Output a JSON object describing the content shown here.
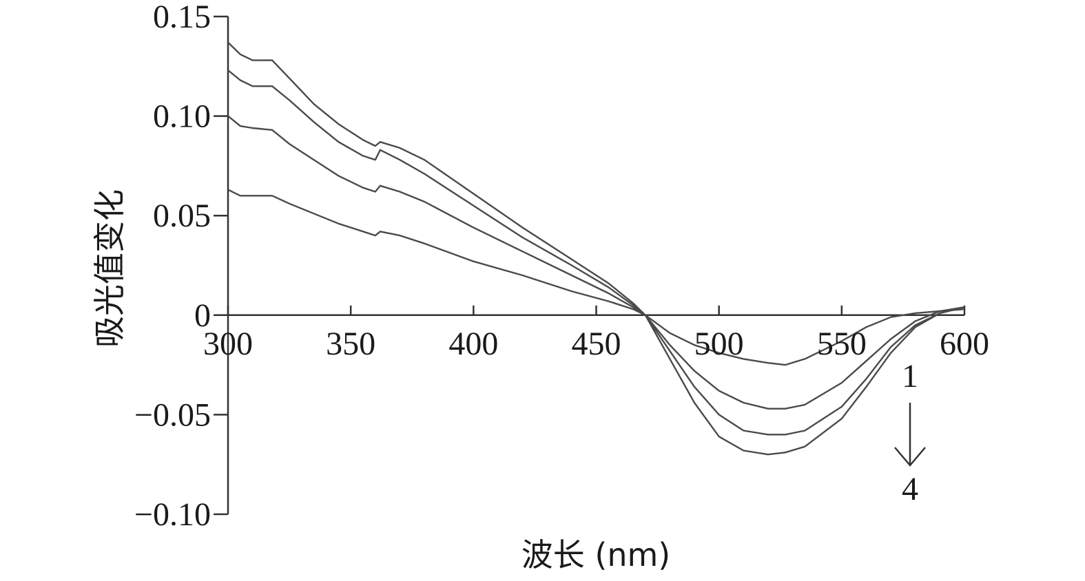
{
  "chart_data": {
    "type": "line",
    "title": "",
    "xlabel": "波长 (nm)",
    "ylabel": "吸光值变化",
    "xlim": [
      300,
      600
    ],
    "ylim": [
      -0.1,
      0.15
    ],
    "x_ticks": [
      300,
      350,
      400,
      450,
      500,
      550,
      600
    ],
    "x_tick_labels": [
      "300",
      "350",
      "400",
      "450",
      "500",
      "550",
      "600"
    ],
    "y_ticks": [
      0.15,
      0.1,
      0.05,
      0,
      -0.05,
      -0.1
    ],
    "y_tick_labels": [
      "0.15",
      "0.10",
      "0.05",
      "0",
      "−0.05",
      "−0.10"
    ],
    "grid": false,
    "legend": "none",
    "line_color": "#4a4a4a",
    "x": [
      300,
      305,
      310,
      318,
      325,
      335,
      345,
      355,
      360,
      362,
      370,
      380,
      400,
      420,
      440,
      455,
      465,
      470,
      480,
      490,
      500,
      510,
      520,
      527,
      535,
      550,
      560,
      570,
      580,
      590,
      600
    ],
    "series": [
      {
        "values": [
          0.063,
          0.06,
          0.06,
          0.06,
          0.056,
          0.051,
          0.046,
          0.042,
          0.04,
          0.042,
          0.04,
          0.036,
          0.027,
          0.02,
          0.012,
          0.007,
          0.003,
          0.0,
          -0.009,
          -0.015,
          -0.019,
          -0.022,
          -0.024,
          -0.025,
          -0.022,
          -0.013,
          -0.006,
          -0.001,
          0.001,
          0.002,
          0.003
        ]
      },
      {
        "values": [
          0.1,
          0.095,
          0.094,
          0.093,
          0.086,
          0.078,
          0.07,
          0.064,
          0.062,
          0.065,
          0.062,
          0.057,
          0.044,
          0.032,
          0.02,
          0.011,
          0.004,
          0.0,
          -0.015,
          -0.028,
          -0.038,
          -0.044,
          -0.047,
          -0.047,
          -0.045,
          -0.034,
          -0.023,
          -0.012,
          -0.003,
          0.002,
          0.004
        ]
      },
      {
        "values": [
          0.123,
          0.118,
          0.115,
          0.115,
          0.108,
          0.097,
          0.087,
          0.08,
          0.078,
          0.083,
          0.078,
          0.071,
          0.055,
          0.039,
          0.025,
          0.014,
          0.005,
          0.0,
          -0.018,
          -0.036,
          -0.05,
          -0.058,
          -0.06,
          -0.06,
          -0.058,
          -0.046,
          -0.032,
          -0.016,
          -0.005,
          0.001,
          0.004
        ]
      },
      {
        "values": [
          0.137,
          0.131,
          0.128,
          0.128,
          0.119,
          0.106,
          0.096,
          0.088,
          0.085,
          0.087,
          0.084,
          0.078,
          0.061,
          0.044,
          0.028,
          0.016,
          0.006,
          0.0,
          -0.022,
          -0.044,
          -0.061,
          -0.068,
          -0.07,
          -0.069,
          -0.066,
          -0.052,
          -0.036,
          -0.019,
          -0.006,
          0.001,
          0.004
        ]
      }
    ],
    "annotations": {
      "start_label": "1",
      "end_label": "4",
      "arrow": "down"
    }
  }
}
